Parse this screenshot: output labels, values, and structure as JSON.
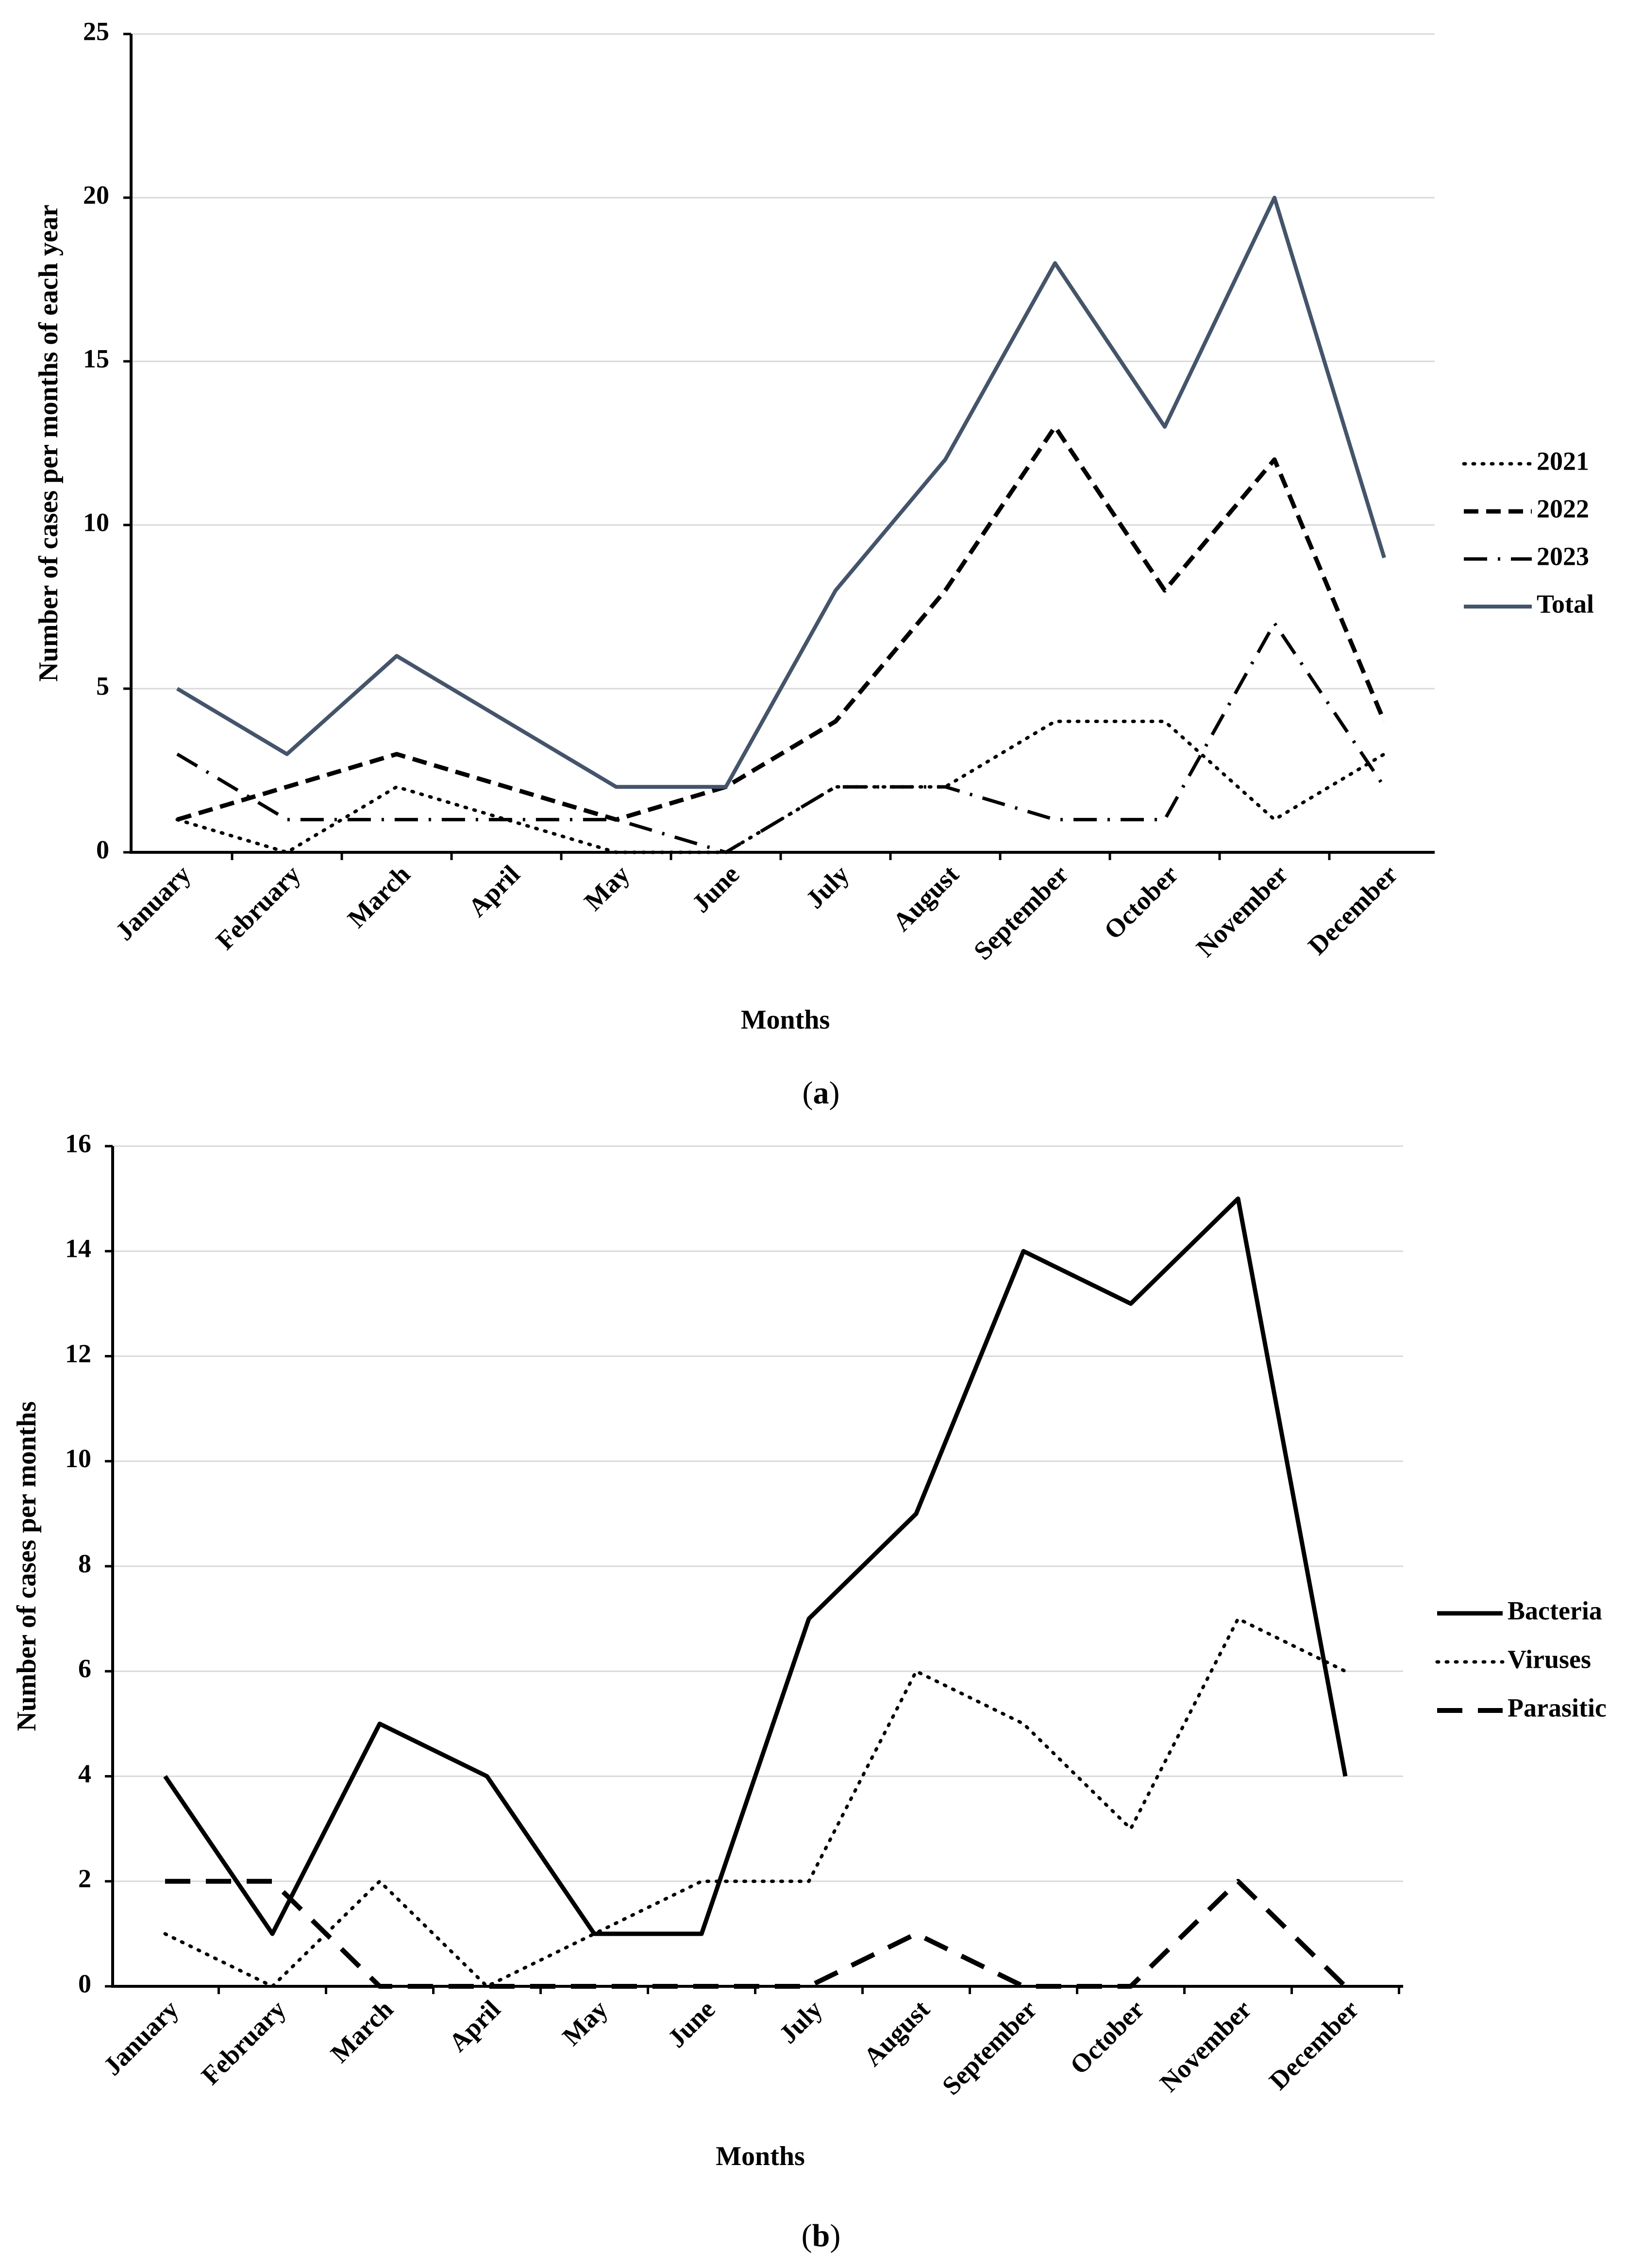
{
  "chart_data": [
    {
      "id": "a",
      "type": "line",
      "caption_letter": "a",
      "xlabel": "Months",
      "ylabel": "Number of cases per months of each year",
      "categories": [
        "January",
        "February",
        "March",
        "April",
        "May",
        "June",
        "July",
        "August",
        "September",
        "October",
        "November",
        "December"
      ],
      "ylim": [
        0,
        25
      ],
      "yticks": [
        0,
        5,
        10,
        15,
        20,
        25
      ],
      "grid": true,
      "legend_position": "right",
      "series": [
        {
          "name": "2021",
          "style": "dotted",
          "color": "#000000",
          "values": [
            1,
            0,
            2,
            1,
            0,
            0,
            2,
            2,
            4,
            4,
            1,
            3
          ]
        },
        {
          "name": "2022",
          "style": "dashed",
          "color": "#000000",
          "values": [
            1,
            2,
            3,
            2,
            1,
            2,
            4,
            8,
            13,
            8,
            12,
            4
          ]
        },
        {
          "name": "2023",
          "style": "dashdot",
          "color": "#000000",
          "values": [
            3,
            1,
            1,
            1,
            1,
            0,
            2,
            2,
            1,
            1,
            7,
            2
          ]
        },
        {
          "name": "Total",
          "style": "solid",
          "color": "#44546a",
          "values": [
            5,
            3,
            6,
            4,
            2,
            2,
            8,
            12,
            18,
            13,
            20,
            9
          ]
        }
      ]
    },
    {
      "id": "b",
      "type": "line",
      "caption_letter": "b",
      "xlabel": "Months",
      "ylabel": "Number of cases per months",
      "categories": [
        "January",
        "February",
        "March",
        "April",
        "May",
        "June",
        "July",
        "August",
        "September",
        "October",
        "November",
        "December"
      ],
      "ylim": [
        0,
        16
      ],
      "yticks": [
        0,
        2,
        4,
        6,
        8,
        10,
        12,
        14,
        16
      ],
      "grid": true,
      "legend_position": "right",
      "series": [
        {
          "name": "Bacteria",
          "style": "solid",
          "color": "#000000",
          "values": [
            4,
            1,
            5,
            4,
            1,
            1,
            7,
            9,
            14,
            13,
            15,
            4
          ]
        },
        {
          "name": "Viruses",
          "style": "dotted",
          "color": "#000000",
          "values": [
            1,
            0,
            2,
            0,
            1,
            2,
            2,
            6,
            5,
            3,
            7,
            6
          ]
        },
        {
          "name": "Parasitic",
          "style": "longdash",
          "color": "#000000",
          "values": [
            2,
            2,
            0,
            0,
            0,
            0,
            0,
            1,
            0,
            0,
            2,
            0
          ]
        }
      ]
    }
  ]
}
